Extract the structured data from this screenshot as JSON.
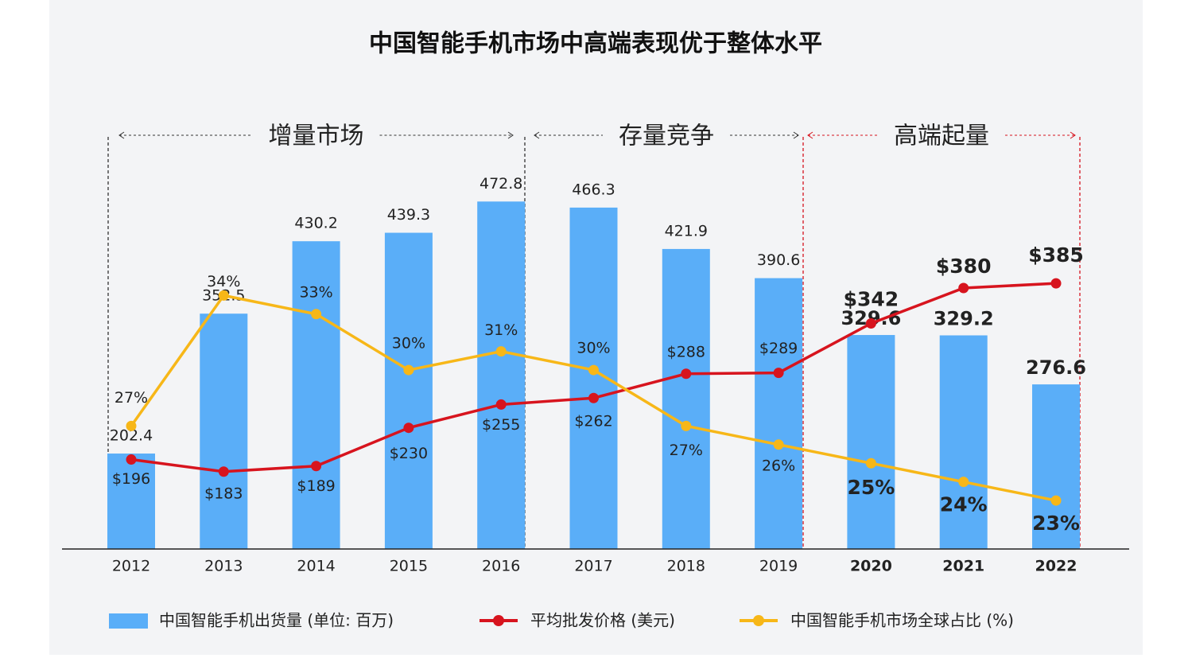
{
  "chart_data": {
    "type": "bar",
    "title": "中国智能手机市场中高端表现优于整体水平",
    "annotations": [
      "增量市场",
      "存量竞争",
      "高端起量"
    ],
    "categories": [
      "2012",
      "2013",
      "2014",
      "2015",
      "2016",
      "2017",
      "2018",
      "2019",
      "2020",
      "2021",
      "2022"
    ],
    "ylim": [
      100,
      520
    ],
    "y2lim": [
      20.4,
      41.4
    ],
    "series": [
      {
        "name": "中国智能手机出货量 (单位: 百万)",
        "type": "bar",
        "color": "#5aaef8",
        "values": [
          202.4,
          352.5,
          430.2,
          439.3,
          472.8,
          466.3,
          421.9,
          390.6,
          329.6,
          329.2,
          276.6
        ]
      },
      {
        "name": "平均批发价格 (美元)",
        "type": "line",
        "color": "#d7141e",
        "values": [
          196,
          183,
          189,
          230,
          255,
          262,
          288,
          289,
          342,
          380,
          385
        ],
        "value_labels": [
          "$196",
          "$183",
          "$189",
          "$230",
          "$255",
          "$262",
          "$288",
          "$289",
          "$342",
          "$380",
          "$385"
        ]
      },
      {
        "name": "中国智能手机市场全球占比 (%)",
        "type": "line",
        "axis": "y2",
        "color": "#f7b718",
        "values": [
          27,
          34,
          33,
          30,
          31,
          30,
          27,
          26,
          25,
          24,
          23
        ],
        "value_labels": [
          "27%",
          "34%",
          "33%",
          "30%",
          "31%",
          "30%",
          "27%",
          "26%",
          "25%",
          "24%",
          "23%"
        ]
      }
    ]
  }
}
